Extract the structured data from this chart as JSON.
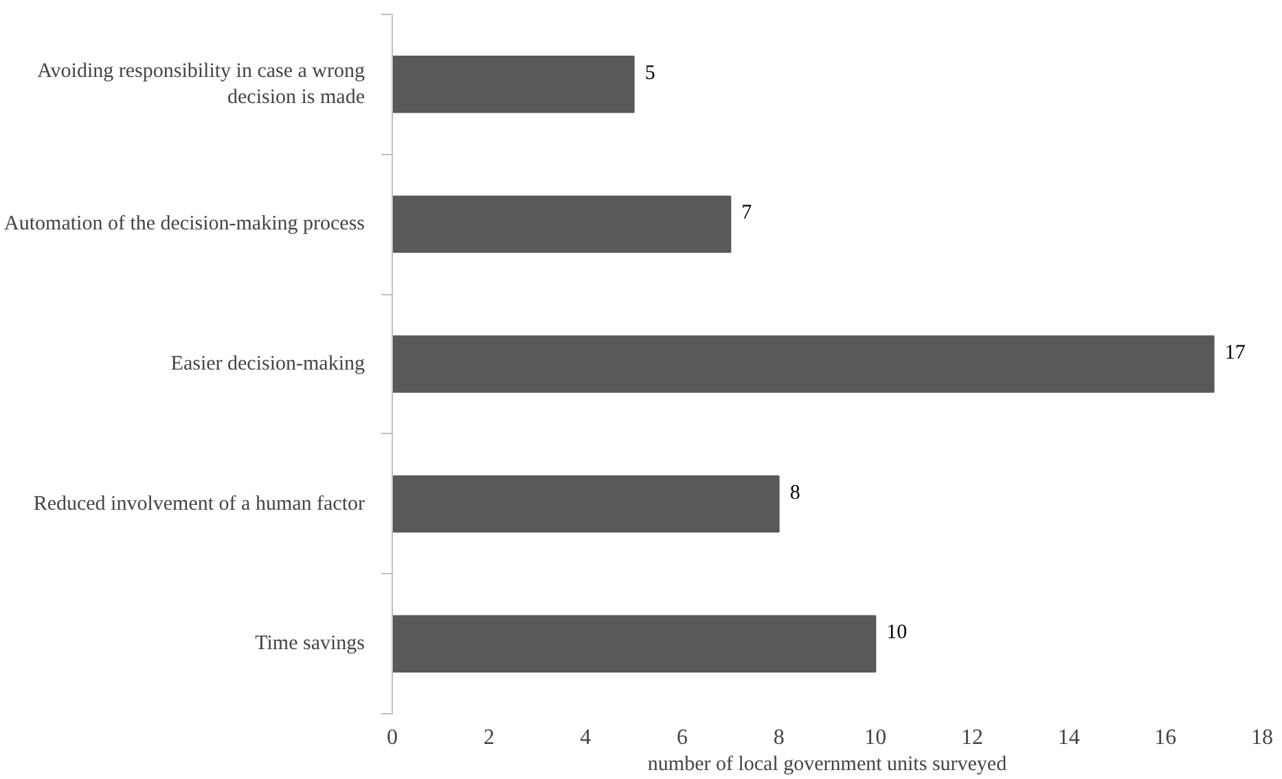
{
  "chart_data": {
    "type": "bar",
    "orientation": "horizontal",
    "xlabel": "number of local government units surveyed",
    "categories": [
      "Avoiding responsibility in case a wrong decision is made",
      "Automation of the decision-making process",
      "Easier decision-making",
      "Reduced involvement of a human factor",
      "Time savings"
    ],
    "values": [
      5,
      7,
      17,
      8,
      10
    ],
    "color": "#595959",
    "xlim": [
      0,
      18
    ],
    "xticks": [
      0,
      2,
      4,
      6,
      8,
      10,
      12,
      14,
      16,
      18
    ],
    "data_labels": true,
    "grid": false
  }
}
